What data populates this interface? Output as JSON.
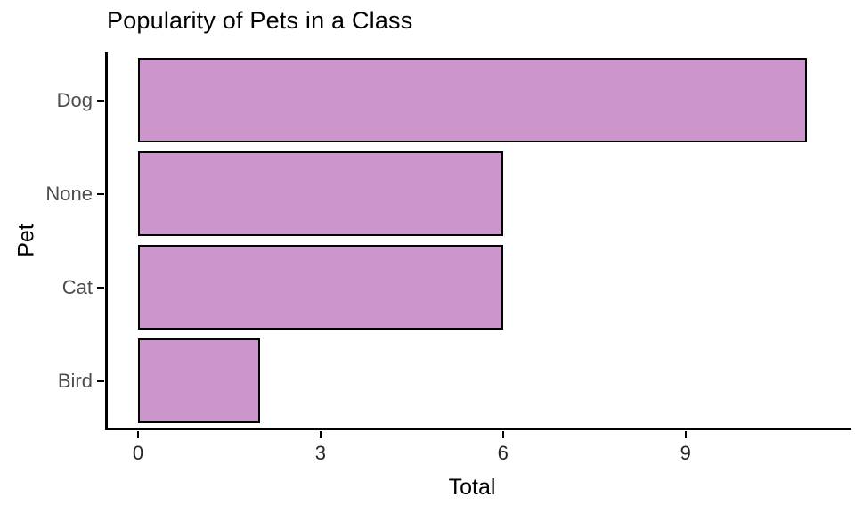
{
  "chart_data": {
    "type": "bar",
    "orientation": "horizontal",
    "title": "Popularity of Pets in a Class",
    "xlabel": "Total",
    "ylabel": "Pet",
    "categories": [
      "Dog",
      "None",
      "Cat",
      "Bird"
    ],
    "values": [
      11,
      6,
      6,
      2
    ],
    "xticks": [
      0,
      3,
      6,
      9
    ],
    "xlim": [
      0,
      11.5
    ],
    "grid": "off",
    "legend": "none",
    "bar_fill": "#cc96cd",
    "bar_stroke": "#000000",
    "axis_color": "#000000",
    "tick_label_color": "#4d4d4d"
  }
}
